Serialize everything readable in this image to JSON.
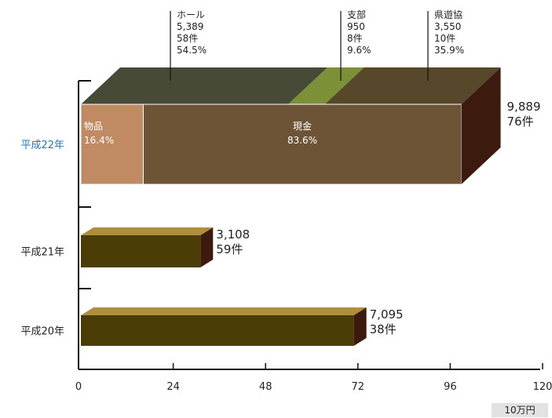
{
  "chart_data": {
    "type": "bar",
    "orientation": "horizontal",
    "stacked": true,
    "style": "3d",
    "x_ticks": [
      0,
      24,
      48,
      72,
      96,
      120
    ],
    "xlim": [
      0,
      120
    ],
    "unit": "10万円",
    "rows": [
      {
        "category": "平成22年",
        "highlight": true,
        "total_value": 98.89,
        "total_label": "9,889",
        "count_label": "76件",
        "front_segments": [
          {
            "name": "物品",
            "share_label": "16.4%",
            "value": 16.22,
            "color": "#c08a62"
          },
          {
            "name": "現金",
            "share_label": "83.6%",
            "value": 82.67,
            "color": "#6e5437"
          }
        ],
        "top_segments": [
          {
            "name": "ホール",
            "amount": "5,389",
            "count": "58件",
            "share_label": "54.5%",
            "value": 53.89,
            "color": "#484a38"
          },
          {
            "name": "支部",
            "amount": "950",
            "count": "8件",
            "share_label": "9.6%",
            "value": 9.5,
            "color": "#7c9037"
          },
          {
            "name": "県遊協",
            "amount": "3,550",
            "count": "10件",
            "share_label": "35.9%",
            "value": 35.5,
            "color": "#58482b"
          }
        ]
      },
      {
        "category": "平成21年",
        "highlight": false,
        "total_value": 31.08,
        "total_label": "3,108",
        "count_label": "59件",
        "front_color": "#4a3d06",
        "top_color": "#b08e40"
      },
      {
        "category": "平成20年",
        "highlight": false,
        "total_value": 70.95,
        "total_label": "7,095",
        "count_label": "38件",
        "front_color": "#4a3d06",
        "top_color": "#b08e40"
      }
    ],
    "side_color": "#3c1b0e"
  }
}
